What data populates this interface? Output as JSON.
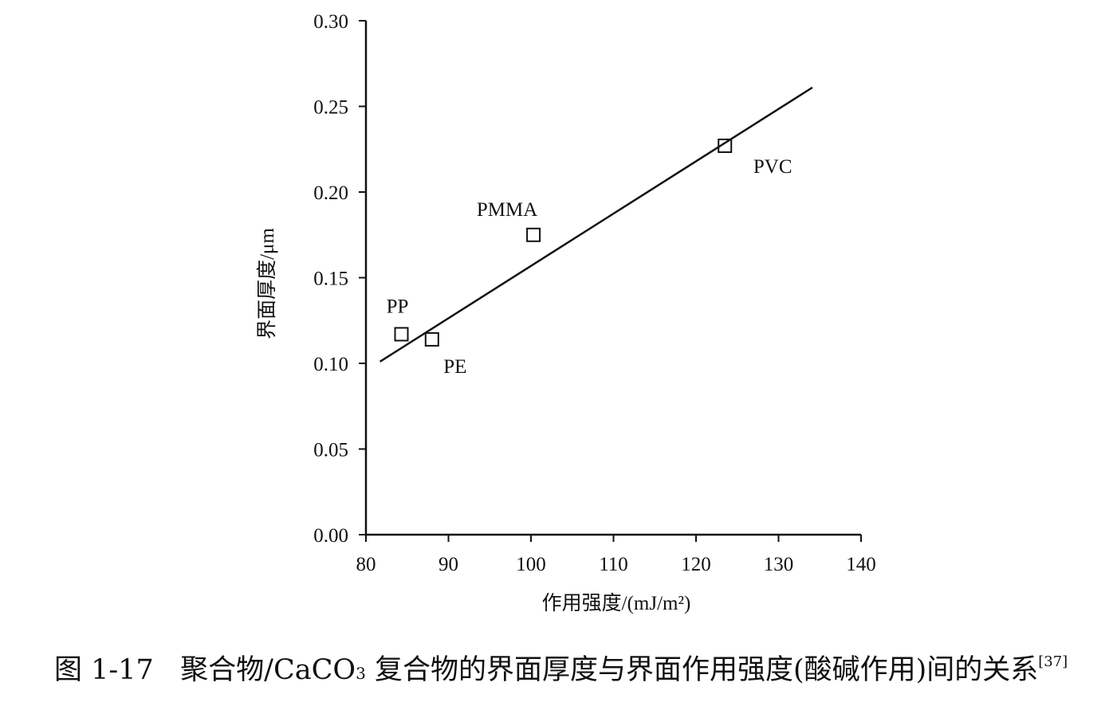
{
  "chart_data": {
    "type": "scatter",
    "title": "",
    "xlabel": "作用强度/(mJ/m²)",
    "ylabel": "界面厚度/μm",
    "xlim": [
      80,
      140
    ],
    "ylim": [
      0.0,
      0.3
    ],
    "x_ticks": [
      "80",
      "90",
      "100",
      "110",
      "120",
      "130",
      "140"
    ],
    "y_ticks": [
      "0.00",
      "0.05",
      "0.10",
      "0.15",
      "0.20",
      "0.25",
      "0.30"
    ],
    "grid": false,
    "marker": "open-square",
    "points": [
      {
        "label": "PP",
        "x": 84.3,
        "y": 0.117
      },
      {
        "label": "PE",
        "x": 88.0,
        "y": 0.114
      },
      {
        "label": "PMMA",
        "x": 100.3,
        "y": 0.175
      },
      {
        "label": "PVC",
        "x": 123.5,
        "y": 0.227
      }
    ],
    "fit_line": {
      "x": [
        81.7,
        134.1
      ],
      "y": [
        0.101,
        0.261
      ]
    }
  },
  "caption": {
    "figure_number": "图 1-17",
    "text_before_sub": "聚合物/CaCO",
    "subscript": "3",
    "text_after_sub": " 复合物的界面厚度与界面作用强度(酸碱作用)间的关系",
    "reference": "[37]"
  }
}
